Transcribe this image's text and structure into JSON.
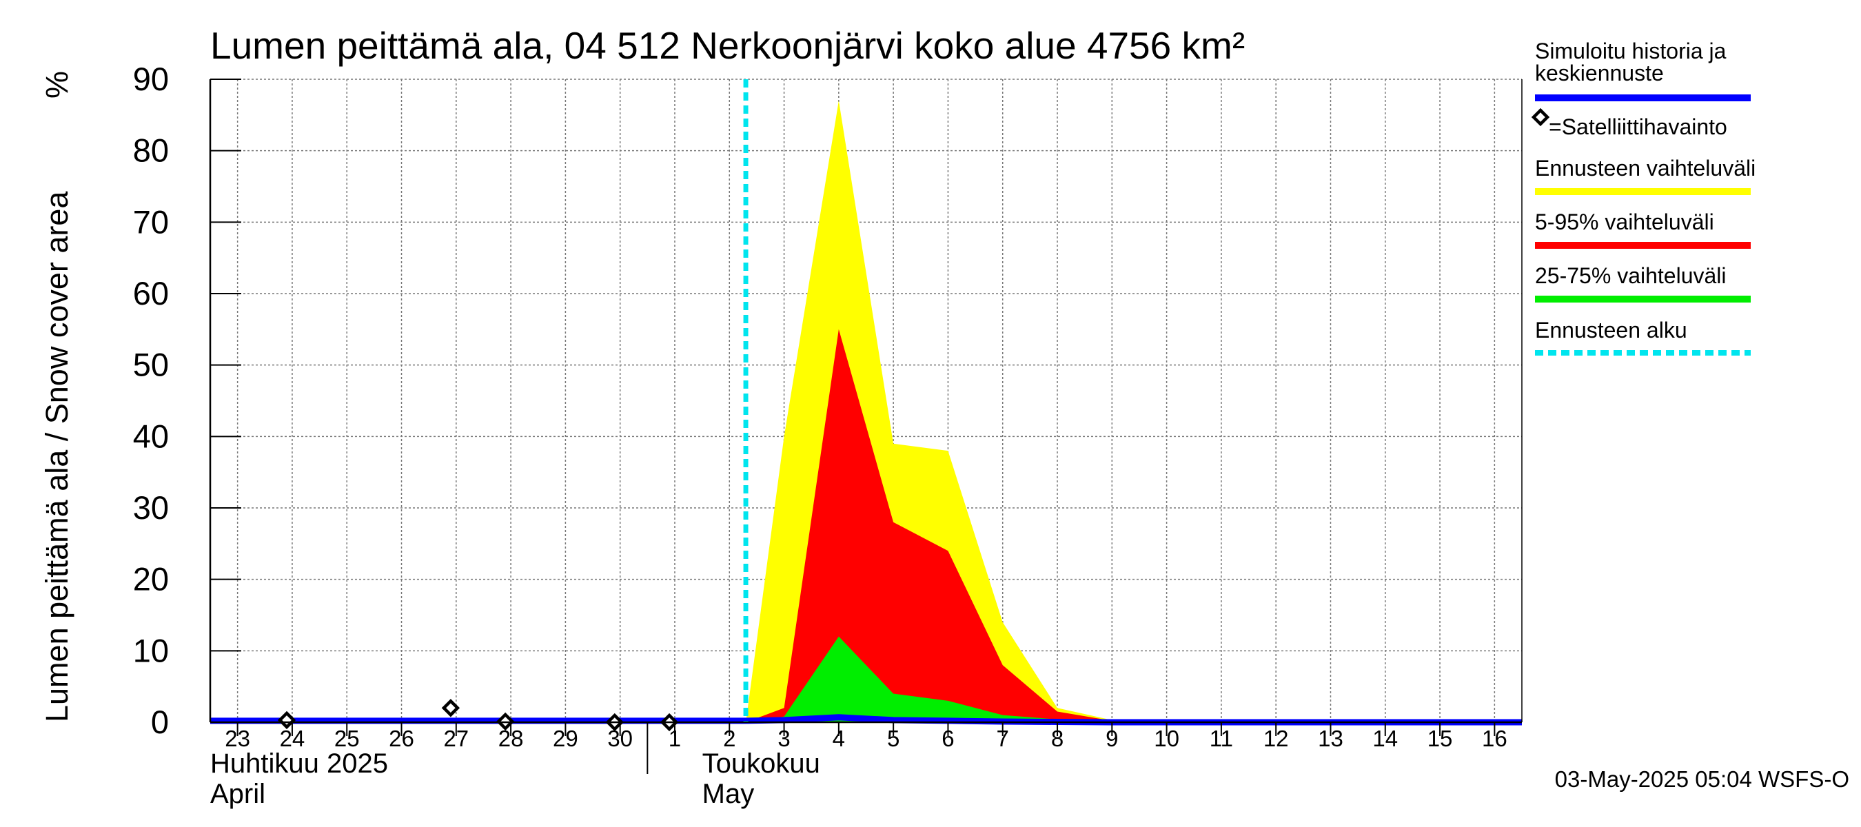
{
  "chart_data": {
    "type": "area",
    "title": "Lumen peittämä ala, 04 512 Nerkoonjärvi koko alue 4756 km²",
    "ylabel": "Lumen peittämä ala / Snow cover area",
    "yunit": "%",
    "ylim": [
      0,
      90
    ],
    "yticks": [
      "0",
      "10",
      "20",
      "30",
      "40",
      "50",
      "60",
      "70",
      "80",
      "90"
    ],
    "xlim": [
      22.5,
      46.5
    ],
    "xticks": [
      {
        "x": 23,
        "label": "23"
      },
      {
        "x": 24,
        "label": "24"
      },
      {
        "x": 25,
        "label": "25"
      },
      {
        "x": 26,
        "label": "26"
      },
      {
        "x": 27,
        "label": "27"
      },
      {
        "x": 28,
        "label": "28"
      },
      {
        "x": 29,
        "label": "29"
      },
      {
        "x": 30,
        "label": "30"
      },
      {
        "x": 31,
        "label": "1"
      },
      {
        "x": 32,
        "label": "2"
      },
      {
        "x": 33,
        "label": "3"
      },
      {
        "x": 34,
        "label": "4"
      },
      {
        "x": 35,
        "label": "5"
      },
      {
        "x": 36,
        "label": "6"
      },
      {
        "x": 37,
        "label": "7"
      },
      {
        "x": 38,
        "label": "8"
      },
      {
        "x": 39,
        "label": "9"
      },
      {
        "x": 40,
        "label": "10"
      },
      {
        "x": 41,
        "label": "11"
      },
      {
        "x": 42,
        "label": "12"
      },
      {
        "x": 43,
        "label": "13"
      },
      {
        "x": 44,
        "label": "14"
      },
      {
        "x": 45,
        "label": "15"
      },
      {
        "x": 46,
        "label": "16"
      }
    ],
    "month_divider_x": 30.5,
    "months": [
      {
        "fi": "Huhtikuu  2025",
        "en": "April",
        "x": 22.5
      },
      {
        "fi": "Toukokuu",
        "en": "May",
        "x": 31.5
      }
    ],
    "forecast_start_x": 32.3,
    "series": [
      {
        "name": "Ennusteen vaihteluväli",
        "color": "#ffff00",
        "x": [
          32.3,
          33,
          34,
          35,
          36,
          37,
          38,
          39,
          40,
          46.5
        ],
        "upper": [
          0,
          40,
          87,
          39,
          38,
          14,
          2,
          0.3,
          0,
          0
        ],
        "lower": [
          0,
          0,
          0,
          0,
          0,
          0,
          0,
          0,
          0,
          0
        ]
      },
      {
        "name": "5-95% vaihteluväli",
        "color": "#ff0000",
        "x": [
          32.3,
          33,
          34,
          35,
          36,
          37,
          38,
          39,
          40,
          46.5
        ],
        "upper": [
          0,
          2,
          55,
          28,
          24,
          8,
          1.5,
          0.2,
          0,
          0
        ],
        "lower": [
          0,
          0,
          0,
          0,
          0,
          0,
          0,
          0,
          0,
          0
        ]
      },
      {
        "name": "25-75% vaihteluväli",
        "color": "#00ee00",
        "x": [
          32.3,
          33,
          34,
          35,
          36,
          37,
          38,
          39,
          40,
          46.5
        ],
        "upper": [
          0,
          0.8,
          12,
          4,
          3,
          1,
          0.4,
          0,
          0,
          0
        ],
        "lower": [
          0,
          0,
          0,
          0,
          0,
          0,
          0,
          0,
          0,
          0
        ]
      },
      {
        "name": "Simuloitu historia ja keskiennuste",
        "color": "#0000ff",
        "x": [
          22.5,
          31,
          32.3,
          33,
          34,
          35,
          36,
          37,
          38,
          39,
          46.5
        ],
        "y": [
          0.2,
          0.2,
          0.2,
          0.3,
          0.7,
          0.3,
          0.2,
          0.1,
          0.05,
          0,
          0
        ]
      }
    ],
    "satellite_observations": [
      {
        "x": 23.9,
        "y": 0.3
      },
      {
        "x": 26.9,
        "y": 2.0
      },
      {
        "x": 27.9,
        "y": 0.1
      },
      {
        "x": 29.9,
        "y": 0
      },
      {
        "x": 30.9,
        "y": 0
      }
    ],
    "legend": {
      "position": "right",
      "items": [
        {
          "label_lines": [
            "Simuloitu historia ja",
            "keskiennuste"
          ],
          "color": "#0000ff",
          "kind": "line"
        },
        {
          "label_lines": [
            "=Satelliittihavainto"
          ],
          "color": "#000000",
          "kind": "diamond"
        },
        {
          "label_lines": [
            "Ennusteen vaihteluväli"
          ],
          "color": "#ffff00",
          "kind": "line"
        },
        {
          "label_lines": [
            "5-95% vaihteluväli"
          ],
          "color": "#ff0000",
          "kind": "line"
        },
        {
          "label_lines": [
            "25-75% vaihteluväli"
          ],
          "color": "#00ee00",
          "kind": "line"
        },
        {
          "label_lines": [
            "Ennusteen alku"
          ],
          "color": "#00e5ee",
          "kind": "dashed"
        }
      ]
    },
    "footer": "03-May-2025 05:04 WSFS-O"
  }
}
